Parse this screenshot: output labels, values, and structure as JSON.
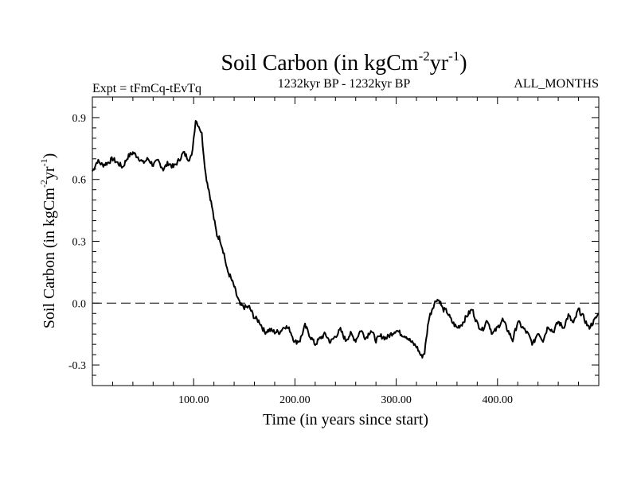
{
  "chart_data": {
    "type": "line",
    "title": "Soil Carbon (in kgCm",
    "title_sup1": "-2",
    "title_mid": "yr",
    "title_sup2": "-1",
    "title_end": ")",
    "subtitle_left": "Expt = tFmCq-tEvTq",
    "subtitle_center": "1232kyr BP - 1232kyr BP",
    "subtitle_right": "ALL_MONTHS",
    "xlabel": "Time (in years since start)",
    "ylabel": "Soil Carbon (in kgCm",
    "ylabel_sup1": "-2",
    "ylabel_mid": "yr",
    "ylabel_sup2": "-1",
    "ylabel_end": ")",
    "xlim": [
      0,
      500
    ],
    "ylim": [
      -0.4,
      1.0
    ],
    "xticks": [
      100,
      200,
      300,
      400
    ],
    "xtick_labels": [
      "100.00",
      "200.00",
      "300.00",
      "400.00"
    ],
    "yticks": [
      0.9,
      0.6,
      0.3,
      0.0,
      -0.3
    ],
    "ytick_labels": [
      "0.9",
      "0.6",
      "0.3",
      "0.0",
      "-0.3"
    ],
    "reference_line": 0.0,
    "series": [
      {
        "name": "Soil Carbon",
        "x": [
          0,
          5,
          10,
          15,
          20,
          25,
          30,
          35,
          40,
          45,
          50,
          55,
          60,
          65,
          70,
          75,
          80,
          85,
          90,
          95,
          98,
          100,
          102,
          104,
          106,
          108,
          110,
          112,
          115,
          118,
          120,
          123,
          126,
          130,
          133,
          136,
          140,
          143,
          146,
          150,
          155,
          160,
          165,
          170,
          175,
          180,
          185,
          190,
          195,
          200,
          205,
          210,
          215,
          220,
          225,
          230,
          235,
          240,
          245,
          250,
          255,
          260,
          265,
          270,
          275,
          280,
          285,
          290,
          295,
          300,
          305,
          310,
          315,
          320,
          325,
          328,
          332,
          336,
          340,
          343,
          346,
          350,
          355,
          360,
          365,
          370,
          375,
          380,
          385,
          390,
          395,
          400,
          405,
          410,
          415,
          420,
          425,
          430,
          435,
          440,
          445,
          450,
          455,
          460,
          465,
          470,
          475,
          480,
          485,
          490,
          495,
          500
        ],
        "values": [
          0.64,
          0.69,
          0.67,
          0.68,
          0.7,
          0.68,
          0.66,
          0.71,
          0.73,
          0.71,
          0.68,
          0.7,
          0.67,
          0.69,
          0.65,
          0.68,
          0.66,
          0.69,
          0.73,
          0.7,
          0.71,
          0.8,
          0.89,
          0.87,
          0.85,
          0.82,
          0.72,
          0.62,
          0.55,
          0.47,
          0.41,
          0.33,
          0.31,
          0.24,
          0.16,
          0.13,
          0.08,
          0.03,
          -0.01,
          -0.02,
          -0.02,
          -0.07,
          -0.09,
          -0.14,
          -0.13,
          -0.14,
          -0.14,
          -0.11,
          -0.13,
          -0.19,
          -0.18,
          -0.11,
          -0.16,
          -0.2,
          -0.17,
          -0.15,
          -0.19,
          -0.16,
          -0.13,
          -0.18,
          -0.15,
          -0.18,
          -0.13,
          -0.17,
          -0.13,
          -0.18,
          -0.16,
          -0.17,
          -0.15,
          -0.13,
          -0.15,
          -0.16,
          -0.19,
          -0.21,
          -0.26,
          -0.24,
          -0.08,
          -0.02,
          0.02,
          0.01,
          -0.03,
          -0.04,
          -0.09,
          -0.12,
          -0.1,
          -0.06,
          -0.03,
          -0.1,
          -0.13,
          -0.08,
          -0.15,
          -0.12,
          -0.08,
          -0.13,
          -0.18,
          -0.09,
          -0.12,
          -0.15,
          -0.2,
          -0.14,
          -0.18,
          -0.11,
          -0.14,
          -0.09,
          -0.12,
          -0.06,
          -0.1,
          -0.03,
          -0.07,
          -0.12,
          -0.09,
          -0.05
        ]
      }
    ]
  }
}
